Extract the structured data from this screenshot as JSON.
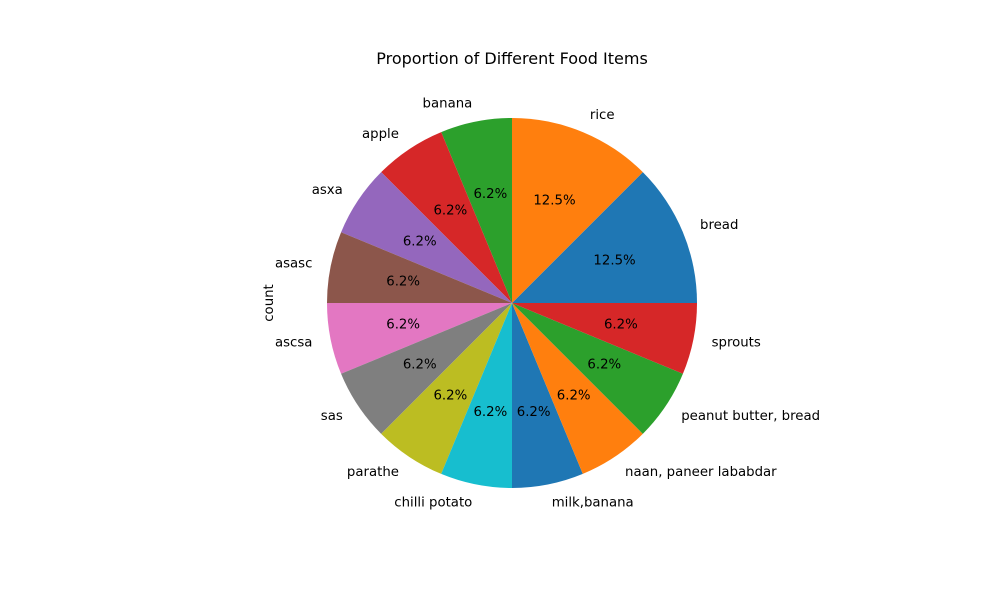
{
  "chart_data": {
    "type": "pie",
    "title": "Proportion of Different Food Items",
    "ylabel": "count",
    "categories": [
      "bread",
      "rice",
      "banana",
      "apple",
      "asxa",
      "asasc",
      "ascsa",
      "sas",
      "parathe",
      "chilli potato",
      "milk,banana",
      "naan, paneer lababdar",
      "peanut butter, bread",
      "sprouts"
    ],
    "values": [
      2,
      2,
      1,
      1,
      1,
      1,
      1,
      1,
      1,
      1,
      1,
      1,
      1,
      1
    ],
    "percent_labels": [
      "12.5%",
      "12.5%",
      "6.2%",
      "6.2%",
      "6.2%",
      "6.2%",
      "6.2%",
      "6.2%",
      "6.2%",
      "6.2%",
      "6.2%",
      "6.2%",
      "6.2%",
      "6.2%"
    ],
    "colors": [
      "#1f77b4",
      "#ff7f0e",
      "#2ca02c",
      "#d62728",
      "#9467bd",
      "#8c564b",
      "#e377c2",
      "#7f7f7f",
      "#bcbd22",
      "#17becf",
      "#1f77b4",
      "#ff7f0e",
      "#2ca02c",
      "#d62728"
    ],
    "start_angle_deg": 0,
    "direction": "counterclockwise",
    "legend": "none"
  }
}
